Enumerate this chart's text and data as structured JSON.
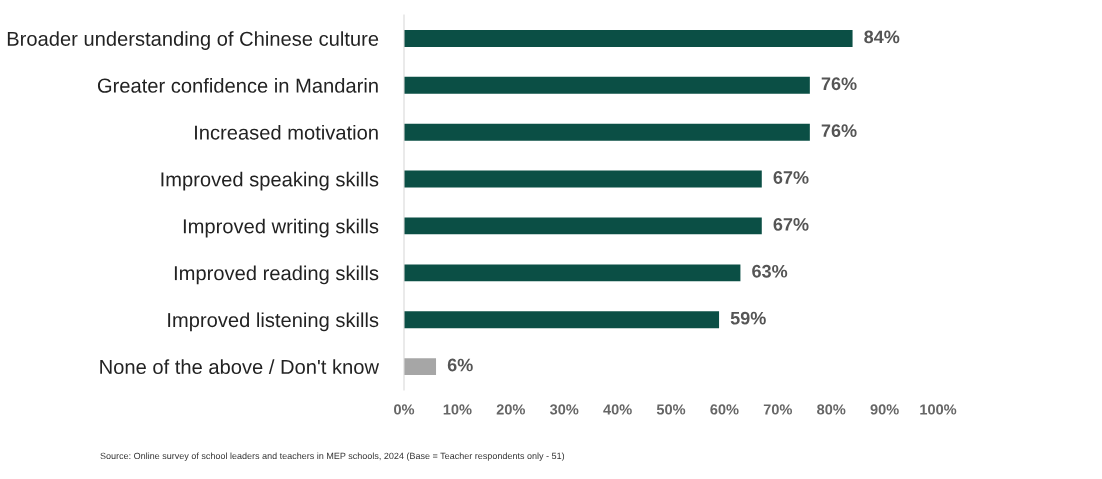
{
  "chart_data": {
    "type": "bar",
    "orientation": "horizontal",
    "categories": [
      "Broader understanding of Chinese culture",
      "Greater confidence in Mandarin",
      "Increased motivation",
      "Improved speaking skills",
      "Improved writing skills",
      "Improved reading skills",
      "Improved listening skills",
      "None of the above / Don't know"
    ],
    "values": [
      84,
      76,
      76,
      67,
      67,
      63,
      59,
      6
    ],
    "colors": [
      "#0b4f45",
      "#0b4f45",
      "#0b4f45",
      "#0b4f45",
      "#0b4f45",
      "#0b4f45",
      "#0b4f45",
      "#a6a6a6"
    ],
    "value_labels": [
      "84%",
      "76%",
      "76%",
      "67%",
      "67%",
      "63%",
      "59%",
      "6%"
    ],
    "xlim": [
      0,
      100
    ],
    "xticks": [
      {
        "value": 0,
        "label": "0%"
      },
      {
        "value": 10,
        "label": "10%"
      },
      {
        "value": 20,
        "label": "20%"
      },
      {
        "value": 30,
        "label": "30%"
      },
      {
        "value": 40,
        "label": "40%"
      },
      {
        "value": 50,
        "label": "50%"
      },
      {
        "value": 60,
        "label": "60%"
      },
      {
        "value": 70,
        "label": "70%"
      },
      {
        "value": 80,
        "label": "80%"
      },
      {
        "value": 90,
        "label": "90%"
      },
      {
        "value": 100,
        "label": "100%"
      }
    ],
    "grid": false,
    "legend": false,
    "annotations": [
      "Source: Online survey of school leaders and teachers in MEP schools, 2024 (Base = Teacher respondents only - 51)"
    ]
  }
}
